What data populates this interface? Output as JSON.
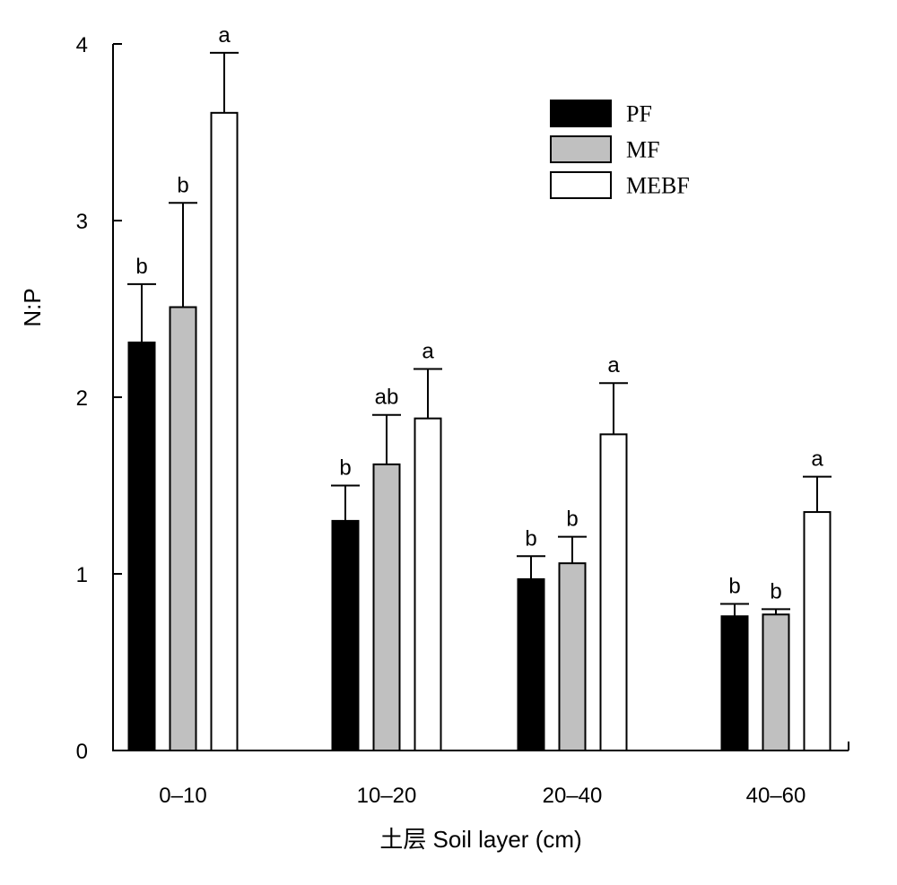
{
  "chart_data": {
    "type": "bar",
    "title": "",
    "xlabel": "土层 Soil layer (cm)",
    "ylabel": "N:P",
    "ylim": [
      0,
      4
    ],
    "yticks": [
      0,
      1,
      2,
      3,
      4
    ],
    "categories": [
      "0–10",
      "10–20",
      "20–40",
      "40–60"
    ],
    "legend_position": "top-right",
    "grid": false,
    "series": [
      {
        "name": "PF",
        "color": "#000000",
        "values": [
          2.31,
          1.3,
          0.97,
          0.76
        ],
        "errors": [
          0.33,
          0.2,
          0.13,
          0.07
        ],
        "letters": [
          "b",
          "b",
          "b",
          "b"
        ]
      },
      {
        "name": "MF",
        "color": "#c0c0c0",
        "values": [
          2.51,
          1.62,
          1.06,
          0.77
        ],
        "errors": [
          0.59,
          0.28,
          0.15,
          0.03
        ],
        "letters": [
          "b",
          "ab",
          "b",
          "b"
        ]
      },
      {
        "name": "MEBF",
        "color": "#ffffff",
        "values": [
          3.61,
          1.88,
          1.79,
          1.35
        ],
        "errors": [
          0.34,
          0.28,
          0.29,
          0.2
        ],
        "letters": [
          "a",
          "a",
          "a",
          "a"
        ]
      }
    ]
  }
}
